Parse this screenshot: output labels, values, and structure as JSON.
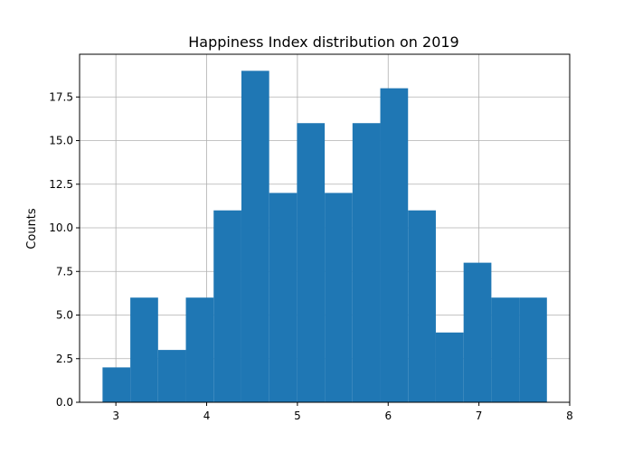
{
  "chart_data": {
    "type": "bar",
    "title": "Happiness Index distribution on 2019",
    "xlabel": "",
    "ylabel": "Counts",
    "xlim": [
      2.6,
      8.0
    ],
    "ylim": [
      0,
      19.95
    ],
    "grid": true,
    "bar_color": "#1f77b4",
    "x_ticks": [
      3,
      4,
      5,
      6,
      7,
      8
    ],
    "y_ticks": [
      0.0,
      2.5,
      5.0,
      7.5,
      10.0,
      12.5,
      15.0,
      17.5
    ],
    "x_tick_labels": [
      "3",
      "4",
      "5",
      "6",
      "7",
      "8"
    ],
    "y_tick_labels": [
      "0.0",
      "2.5",
      "5.0",
      "7.5",
      "10.0",
      "12.5",
      "15.0",
      "17.5"
    ],
    "bins": [
      {
        "start": 2.853,
        "end": 3.159,
        "count": 2
      },
      {
        "start": 3.159,
        "end": 3.465,
        "count": 6
      },
      {
        "start": 3.465,
        "end": 3.771,
        "count": 3
      },
      {
        "start": 3.771,
        "end": 4.077,
        "count": 6
      },
      {
        "start": 4.077,
        "end": 4.383,
        "count": 11
      },
      {
        "start": 4.383,
        "end": 4.689,
        "count": 19
      },
      {
        "start": 4.689,
        "end": 4.995,
        "count": 12
      },
      {
        "start": 4.995,
        "end": 5.301,
        "count": 16
      },
      {
        "start": 5.301,
        "end": 5.607,
        "count": 12
      },
      {
        "start": 5.607,
        "end": 5.913,
        "count": 16
      },
      {
        "start": 5.913,
        "end": 6.219,
        "count": 18
      },
      {
        "start": 6.219,
        "end": 6.525,
        "count": 11
      },
      {
        "start": 6.525,
        "end": 6.831,
        "count": 4
      },
      {
        "start": 6.831,
        "end": 7.137,
        "count": 8
      },
      {
        "start": 7.137,
        "end": 7.443,
        "count": 6
      },
      {
        "start": 7.443,
        "end": 7.749,
        "count": 6
      }
    ]
  }
}
